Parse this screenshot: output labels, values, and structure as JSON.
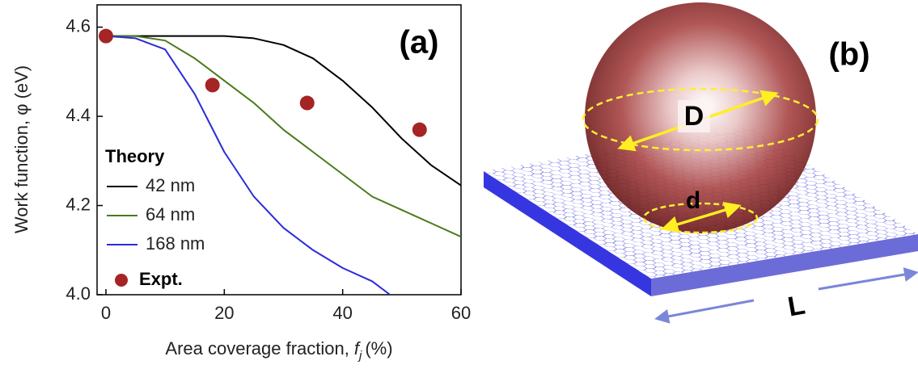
{
  "chart_data": {
    "type": "line",
    "panel_label": "(a)",
    "x_label": {
      "text": "Area coverage fraction,",
      "var": "f",
      "sub": "j",
      "unit": "(%)"
    },
    "y_label": "Work function, φ (eV)",
    "xlim": [
      -1.5,
      60
    ],
    "ylim": [
      4.0,
      4.65
    ],
    "xticks": [
      0,
      20,
      40,
      60
    ],
    "yticks": [
      {
        "value": 4,
        "label": "4.0"
      },
      4.2,
      4.4,
      4.6
    ],
    "legend_title": "Theory",
    "legend": "lower left",
    "series": [
      {
        "name": "42 nm",
        "color": "#000000",
        "mode": "line",
        "x": [
          0,
          5,
          10,
          15,
          20,
          25,
          30,
          35,
          40,
          45,
          50,
          55,
          60
        ],
        "values": [
          4.58,
          4.58,
          4.58,
          4.58,
          4.58,
          4.575,
          4.56,
          4.53,
          4.48,
          4.42,
          4.35,
          4.29,
          4.245
        ]
      },
      {
        "name": "64 nm",
        "color": "#4a7a1a",
        "mode": "line",
        "x": [
          0,
          5,
          10,
          15,
          20,
          25,
          30,
          35,
          40,
          45,
          50,
          55,
          60
        ],
        "values": [
          4.58,
          4.58,
          4.57,
          4.53,
          4.48,
          4.43,
          4.37,
          4.32,
          4.27,
          4.22,
          4.19,
          4.16,
          4.13
        ]
      },
      {
        "name": "168 nm",
        "color": "#2b2bd8",
        "mode": "line",
        "x": [
          0,
          5,
          10,
          15,
          20,
          25,
          30,
          35,
          40,
          45,
          48
        ],
        "values": [
          4.58,
          4.575,
          4.55,
          4.45,
          4.32,
          4.22,
          4.15,
          4.1,
          4.06,
          4.03,
          4.0
        ]
      },
      {
        "name": "Expt.",
        "color": "#a52424",
        "mode": "markers",
        "x": [
          0,
          18,
          34,
          53
        ],
        "values": [
          4.58,
          4.47,
          4.43,
          4.37
        ]
      }
    ]
  },
  "diagram": {
    "panel_label": "(b)",
    "labels": {
      "sphere_diameter": "D",
      "contact_diameter": "d",
      "lattice_size": "L"
    }
  }
}
